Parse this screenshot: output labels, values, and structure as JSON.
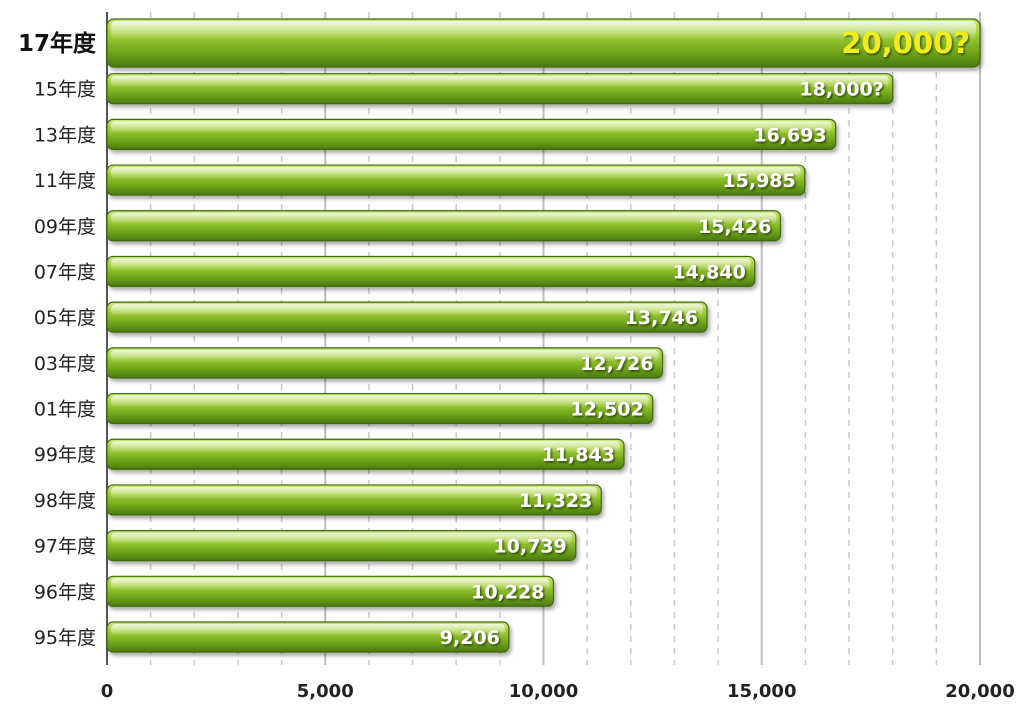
{
  "chart_data": {
    "type": "bar",
    "orientation": "horizontal",
    "categories": [
      "17年度",
      "15年度",
      "13年度",
      "11年度",
      "09年度",
      "07年度",
      "05年度",
      "03年度",
      "01年度",
      "99年度",
      "98年度",
      "97年度",
      "96年度",
      "95年度"
    ],
    "values": [
      20000,
      18000,
      16693,
      15985,
      15426,
      14840,
      13746,
      12726,
      12502,
      11843,
      11323,
      10739,
      10228,
      9206
    ],
    "data_labels": [
      "20,000?",
      "18,000?",
      "16,693",
      "15,985",
      "15,426",
      "14,840",
      "13,746",
      "12,726",
      "12,502",
      "11,843",
      "11,323",
      "10,739",
      "10,228",
      "9,206"
    ],
    "xlim": [
      0,
      20000
    ],
    "x_ticks": [
      0,
      5000,
      10000,
      15000,
      20000
    ],
    "x_tick_labels": [
      "0",
      "5,000",
      "10,000",
      "15,000",
      "20,000"
    ],
    "grid": "vertical",
    "highlight_category": "17年度",
    "colors": {
      "bar_light": "#a9d33c",
      "bar_mid": "#7cb31f",
      "bar_dark": "#4f7d10",
      "bar_stroke": "#3f6a0c",
      "highlight_text": "#f2ec1e",
      "label_text": "#ffffff",
      "grid_solid": "#bdbdbd",
      "grid_dashed": "#c8c8c8"
    }
  }
}
